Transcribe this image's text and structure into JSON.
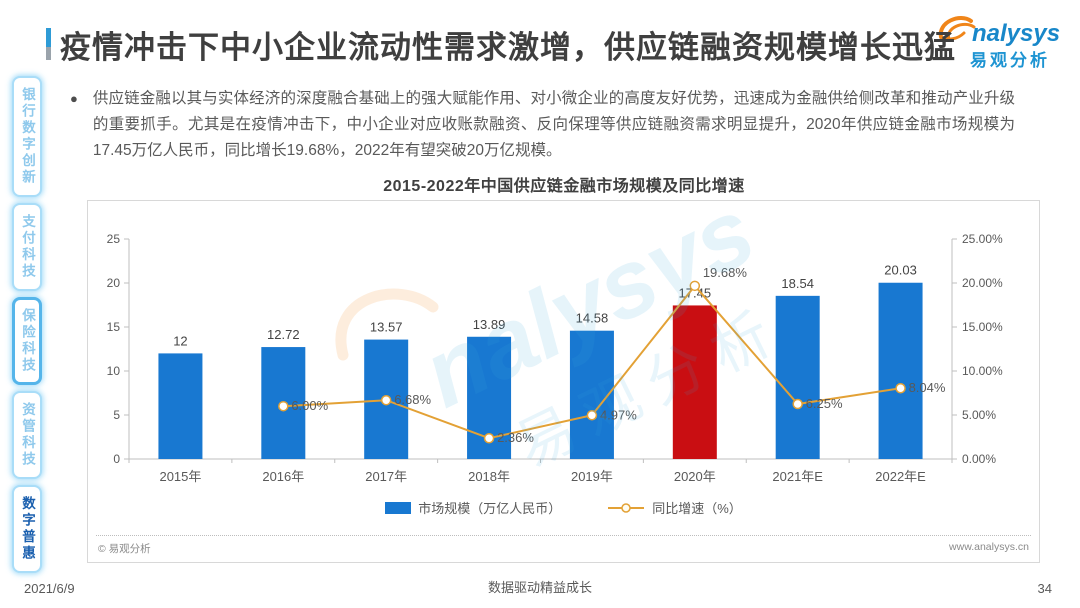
{
  "header": {
    "title": "疫情冲击下中小企业流动性需求激增，供应链融资规模增长迅猛",
    "logo": {
      "wordmark": "nalysys",
      "cn": "易观分析"
    }
  },
  "sidebar": {
    "items": [
      {
        "label": "银行数字创新"
      },
      {
        "label": "支付科技"
      },
      {
        "label": "保险科技"
      },
      {
        "label": "资管科技"
      },
      {
        "label": "数字普惠"
      }
    ]
  },
  "body": {
    "bullet": "●",
    "paragraph": "供应链金融以其与实体经济的深度融合基础上的强大赋能作用、对小微企业的高度友好优势，迅速成为金融供给侧改革和推动产业升级的重要抓手。尤其是在疫情冲击下，中小企业对应收账款融资、反向保理等供应链融资需求明显提升，2020年供应链金融市场规模为17.45万亿人民币，同比增长19.68%，2022年有望突破20万亿规模。"
  },
  "chart_data": {
    "type": "bar+line combo",
    "title": "2015-2022年中国供应链金融市场规模及同比增速",
    "categories": [
      "2015年",
      "2016年",
      "2017年",
      "2018年",
      "2019年",
      "2020年",
      "2021年E",
      "2022年E"
    ],
    "series": [
      {
        "name": "市场规模（万亿人民币）",
        "type": "bar",
        "axis": "left",
        "values": [
          12,
          12.72,
          13.57,
          13.89,
          14.58,
          17.45,
          18.54,
          20.03
        ],
        "labels": [
          "12",
          "12.72",
          "13.57",
          "13.89",
          "14.58",
          "17.45",
          "18.54",
          "20.03"
        ]
      },
      {
        "name": "同比增速（%）",
        "type": "line",
        "axis": "right",
        "values": [
          null,
          6.0,
          6.68,
          2.36,
          4.97,
          19.68,
          6.25,
          8.04
        ],
        "labels": [
          null,
          "6.00%",
          "6.68%",
          "2.36%",
          "4.97%",
          "19.68%",
          "6.25%",
          "8.04%"
        ]
      }
    ],
    "left_axis": {
      "min": 0,
      "max": 25,
      "tick_labels": [
        "0",
        "5",
        "10",
        "15",
        "20",
        "25"
      ]
    },
    "right_axis": {
      "min": 0,
      "max": 25,
      "tick_labels": [
        "0.00%",
        "5.00%",
        "10.00%",
        "15.00%",
        "20.00%",
        "25.00%"
      ]
    },
    "highlight_index": 5,
    "grid": false,
    "legend_position": "bottom",
    "colors": {
      "bar": "#1878d1",
      "bar_highlight": "#c90e12",
      "line": "#e3a135",
      "axis": "#bfbfbf",
      "label": "#595959",
      "bar_label": "#444444"
    },
    "watermark": {
      "latin": "nalysys",
      "cn": "易观分析"
    }
  },
  "chart_card": {
    "copyright": "© 易观分析",
    "website": "www.analysys.cn"
  },
  "footer": {
    "date": "2021/6/9",
    "slogan": "数据驱动精益成长",
    "page_number": "34"
  }
}
